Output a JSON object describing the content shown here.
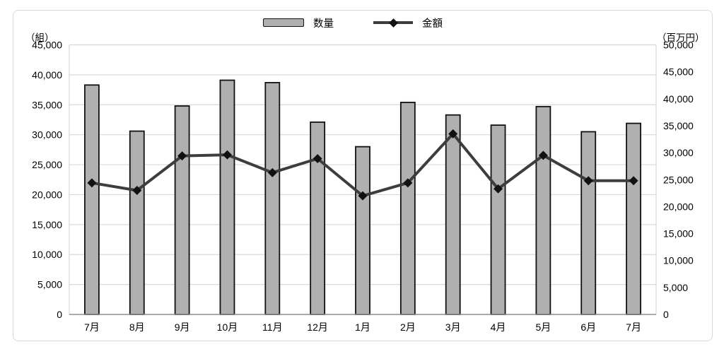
{
  "chart_data": {
    "type": "combo-bar-line",
    "title": "",
    "categories": [
      "7月",
      "8月",
      "9月",
      "10月",
      "11月",
      "12月",
      "1月",
      "2月",
      "3月",
      "4月",
      "5月",
      "6月",
      "7月"
    ],
    "series": [
      {
        "name": "数量",
        "type": "bar",
        "axis": "left",
        "values": [
          38300,
          30600,
          34800,
          39100,
          38700,
          32100,
          28000,
          35400,
          33300,
          31600,
          34700,
          30500,
          31900
        ]
      },
      {
        "name": "金額",
        "type": "line",
        "axis": "right",
        "marker": "diamond",
        "values": [
          24400,
          23000,
          29400,
          29600,
          26300,
          28900,
          22000,
          24400,
          33500,
          23300,
          29500,
          24800,
          24800
        ]
      }
    ],
    "left_axis": {
      "unit": "（組）",
      "min": 0,
      "max": 45000,
      "step": 5000,
      "tick_labels": [
        "45,000",
        "40,000",
        "35,000",
        "30,000",
        "25,000",
        "20,000",
        "15,000",
        "10,000",
        "5,000",
        "0"
      ]
    },
    "right_axis": {
      "unit": "（百万円）",
      "min": 0,
      "max": 50000,
      "step": 5000,
      "tick_labels": [
        "50,000",
        "45,000",
        "40,000",
        "35,000",
        "30,000",
        "25,000",
        "20,000",
        "15,000",
        "10,000",
        "5,000",
        "0"
      ]
    },
    "legend": {
      "position": "top"
    },
    "grid": true,
    "colors": {
      "bar_fill": "#b0b0b0",
      "bar_stroke": "#111111",
      "line": "#3d3d3d",
      "marker": "#111111",
      "gridline": "#d9d9d9",
      "axis_line": "#8f8f8f",
      "frame_border": "#d9d9d9",
      "text": "#000000"
    }
  }
}
